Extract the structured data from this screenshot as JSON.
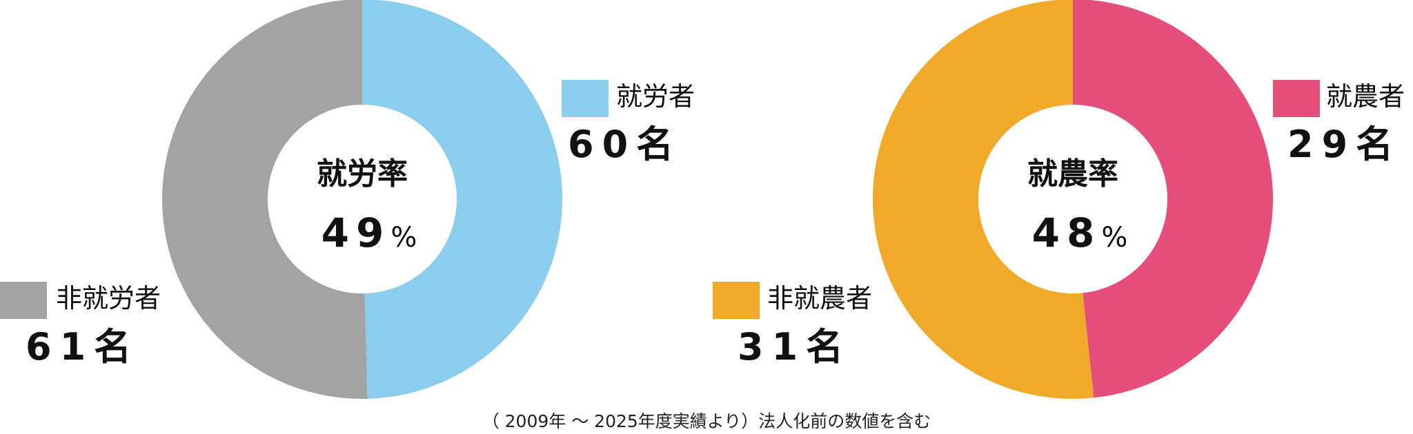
{
  "chart_data": [
    {
      "type": "pie",
      "donut": true,
      "center_title": "就労率",
      "center_value": "49",
      "center_unit": "%",
      "slices": [
        {
          "name": "就労者",
          "value": 60,
          "label": "60名",
          "color": "#8BCDED"
        },
        {
          "name": "非就労者",
          "value": 61,
          "label": "61名",
          "color": "#A3A3A3"
        }
      ]
    },
    {
      "type": "pie",
      "donut": true,
      "center_title": "就農率",
      "center_value": "48",
      "center_unit": "%",
      "slices": [
        {
          "name": "就農者",
          "value": 29,
          "label": "29名",
          "color": "#E54D7A"
        },
        {
          "name": "非就農者",
          "value": 31,
          "label": "31名",
          "color": "#F1A929"
        }
      ]
    }
  ],
  "footnote": "（ 2009年 ～ 2025年度実績より）法人化前の数値を含む"
}
